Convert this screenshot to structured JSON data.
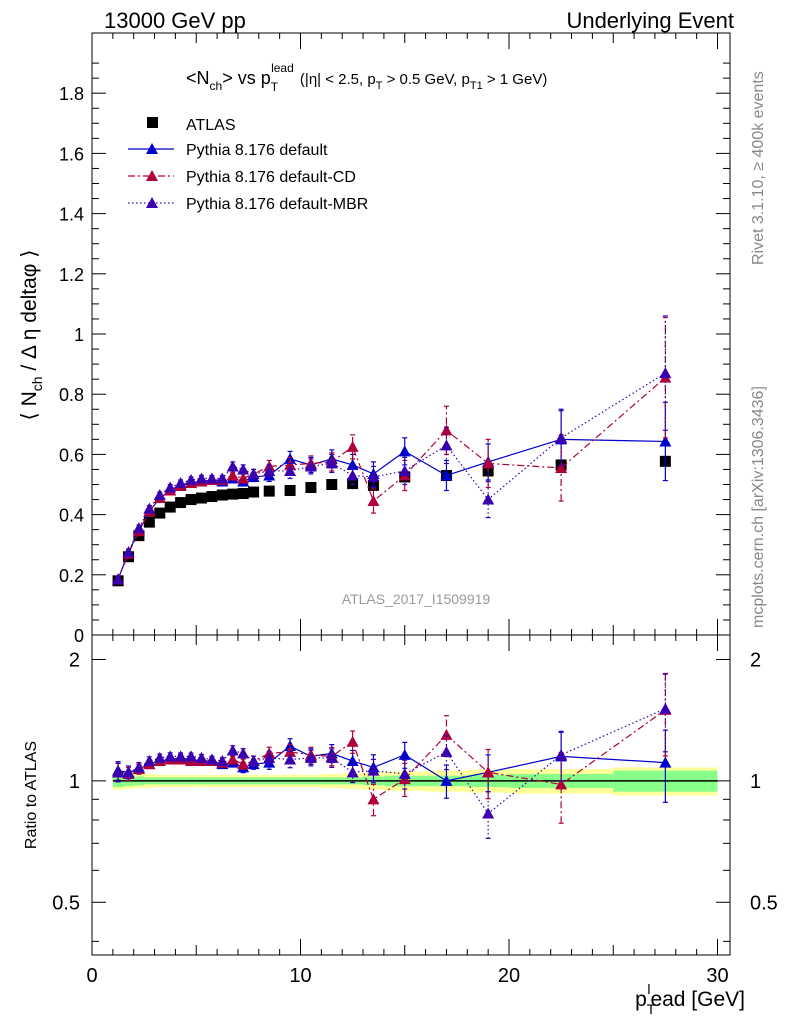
{
  "header": {
    "left": "13000 GeV pp",
    "right": "Underlying Event"
  },
  "side_text": {
    "rivet": "Rivet 3.1.10, ≥ 400k events",
    "source": "mcplots.cern.ch [arXiv:1306.3436]"
  },
  "chart_data": [
    {
      "type": "scatter",
      "title": "<N_ch> vs p_T^lead (|η| < 2.5, p_T > 0.5 GeV, p_T1 > 1 GeV)",
      "ylabel": "⟨ N_ch / Δ η deltaφ ⟩",
      "xlabel": "p_T^lead [GeV]",
      "annotation": "ATLAS_2017_I1509919",
      "xlim": [
        0,
        30.6
      ],
      "ylim": [
        0,
        2.0
      ],
      "yticks": [
        "0",
        "0.2",
        "0.4",
        "0.6",
        "0.8",
        "1",
        "1.2",
        "1.4",
        "1.6",
        "1.8"
      ],
      "legend_position": "top-left",
      "series": [
        {
          "name": "ATLAS",
          "color": "#000000",
          "marker": "square",
          "x": [
            1.25,
            1.75,
            2.25,
            2.75,
            3.25,
            3.75,
            4.25,
            4.75,
            5.25,
            5.75,
            6.25,
            6.75,
            7.25,
            7.75,
            8.5,
            9.5,
            10.5,
            11.5,
            12.5,
            13.5,
            15,
            17,
            19,
            22.5,
            27.5
          ],
          "y": [
            0.18,
            0.26,
            0.33,
            0.375,
            0.405,
            0.425,
            0.44,
            0.45,
            0.455,
            0.46,
            0.465,
            0.468,
            0.47,
            0.475,
            0.478,
            0.48,
            0.49,
            0.5,
            0.503,
            0.497,
            0.525,
            0.53,
            0.545,
            0.565,
            0.577
          ]
        },
        {
          "name": "Pythia 8.176 default",
          "color": "#0000cc",
          "dash": "",
          "x": [
            1.25,
            1.75,
            2.25,
            2.75,
            3.25,
            3.75,
            4.25,
            4.75,
            5.25,
            5.75,
            6.25,
            6.75,
            7.25,
            7.75,
            8.5,
            9.5,
            10.5,
            11.5,
            12.5,
            13.5,
            15,
            17,
            19,
            22.5,
            27.5
          ],
          "y": [
            0.185,
            0.275,
            0.345,
            0.41,
            0.455,
            0.48,
            0.5,
            0.505,
            0.51,
            0.515,
            0.51,
            0.52,
            0.51,
            0.525,
            0.53,
            0.585,
            0.565,
            0.585,
            0.565,
            0.535,
            0.61,
            0.53,
            0.575,
            0.65,
            0.643
          ],
          "err": [
            0.01,
            0.01,
            0.01,
            0.01,
            0.01,
            0.01,
            0.01,
            0.01,
            0.01,
            0.01,
            0.01,
            0.01,
            0.015,
            0.015,
            0.02,
            0.025,
            0.025,
            0.03,
            0.035,
            0.04,
            0.045,
            0.05,
            0.06,
            0.1,
            0.13
          ]
        },
        {
          "name": "Pythia 8.176 default-CD",
          "color": "#b0003a",
          "dash": "7,3,2,3",
          "x": [
            1.25,
            1.75,
            2.25,
            2.75,
            3.25,
            3.75,
            4.25,
            4.75,
            5.25,
            5.75,
            6.25,
            6.75,
            7.25,
            7.75,
            8.5,
            9.5,
            10.5,
            11.5,
            12.5,
            13.5,
            15,
            17,
            19,
            22.5,
            27.5
          ],
          "y": [
            0.185,
            0.27,
            0.345,
            0.41,
            0.455,
            0.48,
            0.495,
            0.505,
            0.51,
            0.515,
            0.515,
            0.53,
            0.52,
            0.535,
            0.56,
            0.565,
            0.57,
            0.575,
            0.625,
            0.445,
            0.53,
            0.68,
            0.57,
            0.555,
            0.855
          ],
          "err": [
            0.01,
            0.01,
            0.01,
            0.01,
            0.01,
            0.01,
            0.01,
            0.01,
            0.01,
            0.01,
            0.01,
            0.01,
            0.015,
            0.015,
            0.02,
            0.025,
            0.025,
            0.03,
            0.04,
            0.04,
            0.05,
            0.08,
            0.08,
            0.11,
            0.2
          ]
        },
        {
          "name": "Pythia 8.176 default-MBR",
          "color": "#3a00b0",
          "dash": "1.5,2.5",
          "x": [
            1.25,
            1.75,
            2.25,
            2.75,
            3.25,
            3.75,
            4.25,
            4.75,
            5.25,
            5.75,
            6.25,
            6.75,
            7.25,
            7.75,
            8.5,
            9.5,
            10.5,
            11.5,
            12.5,
            13.5,
            15,
            17,
            19,
            22.5,
            27.5
          ],
          "y": [
            0.185,
            0.275,
            0.355,
            0.42,
            0.465,
            0.49,
            0.505,
            0.515,
            0.52,
            0.52,
            0.52,
            0.56,
            0.55,
            0.535,
            0.545,
            0.545,
            0.56,
            0.57,
            0.53,
            0.525,
            0.545,
            0.63,
            0.45,
            0.655,
            0.87
          ],
          "err": [
            0.01,
            0.01,
            0.01,
            0.01,
            0.01,
            0.01,
            0.01,
            0.01,
            0.01,
            0.01,
            0.01,
            0.015,
            0.015,
            0.015,
            0.02,
            0.025,
            0.025,
            0.03,
            0.03,
            0.035,
            0.045,
            0.06,
            0.06,
            0.09,
            0.19
          ]
        }
      ]
    },
    {
      "type": "scatter",
      "ylabel": "Ratio to ATLAS",
      "xlabel": "p_T^lead [GeV]",
      "xlim": [
        0,
        30.6
      ],
      "ylim": [
        0.37,
        2.3
      ],
      "log_y": true,
      "yticks": [
        "0.5",
        "1",
        "2"
      ],
      "xticks": [
        "0",
        "10",
        "20",
        "30"
      ],
      "reference_line": 1,
      "uncertainty_band_colors": [
        "#ffff99",
        "#88ff88"
      ],
      "series": [
        {
          "name": "Pythia 8.176 default",
          "color": "#0000cc",
          "x": [
            1.25,
            1.75,
            2.25,
            2.75,
            3.25,
            3.75,
            4.25,
            4.75,
            5.25,
            5.75,
            6.25,
            6.75,
            7.25,
            7.75,
            8.5,
            9.5,
            10.5,
            11.5,
            12.5,
            13.5,
            15,
            17,
            19,
            22.5,
            27.5
          ],
          "y": [
            1.06,
            1.05,
            1.07,
            1.1,
            1.12,
            1.13,
            1.14,
            1.13,
            1.12,
            1.12,
            1.1,
            1.11,
            1.08,
            1.1,
            1.11,
            1.22,
            1.15,
            1.17,
            1.12,
            1.08,
            1.16,
            1.0,
            1.05,
            1.15,
            1.11
          ]
        },
        {
          "name": "Pythia 8.176 default-CD",
          "color": "#b0003a",
          "x": [
            1.25,
            1.75,
            2.25,
            2.75,
            3.25,
            3.75,
            4.25,
            4.75,
            5.25,
            5.75,
            6.25,
            6.75,
            7.25,
            7.75,
            8.5,
            9.5,
            10.5,
            11.5,
            12.5,
            13.5,
            15,
            17,
            19,
            22.5,
            27.5
          ],
          "y": [
            1.05,
            1.04,
            1.07,
            1.1,
            1.12,
            1.13,
            1.13,
            1.12,
            1.12,
            1.12,
            1.11,
            1.13,
            1.1,
            1.12,
            1.17,
            1.18,
            1.16,
            1.15,
            1.25,
            0.9,
            1.01,
            1.3,
            1.05,
            0.98,
            1.5
          ]
        },
        {
          "name": "Pythia 8.176 default-MBR",
          "color": "#3a00b0",
          "x": [
            1.25,
            1.75,
            2.25,
            2.75,
            3.25,
            3.75,
            4.25,
            4.75,
            5.25,
            5.75,
            6.25,
            6.75,
            7.25,
            7.75,
            8.5,
            9.5,
            10.5,
            11.5,
            12.5,
            13.5,
            15,
            17,
            19,
            22.5,
            27.5
          ],
          "y": [
            1.05,
            1.05,
            1.08,
            1.12,
            1.14,
            1.15,
            1.15,
            1.15,
            1.14,
            1.13,
            1.12,
            1.19,
            1.17,
            1.12,
            1.14,
            1.13,
            1.14,
            1.14,
            1.05,
            1.06,
            1.04,
            1.18,
            0.83,
            1.16,
            1.51
          ]
        }
      ]
    }
  ]
}
